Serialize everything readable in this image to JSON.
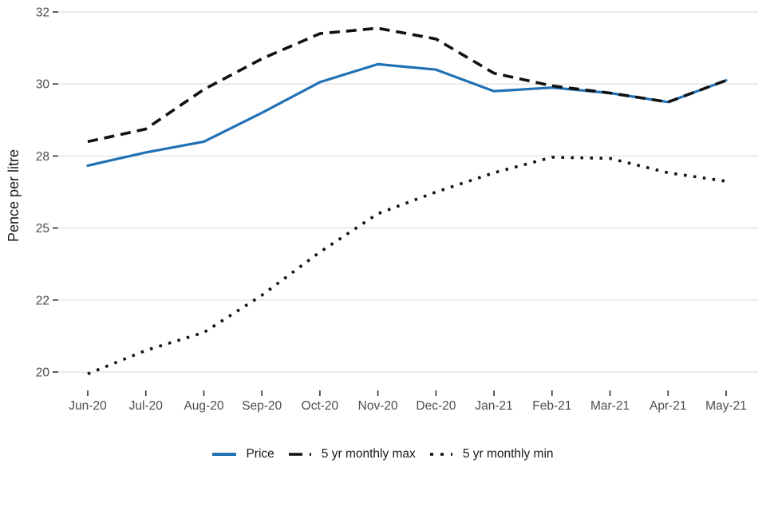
{
  "chart_data": {
    "type": "line",
    "title": "",
    "xlabel": "",
    "ylabel": "Pence per litre",
    "x_categories": [
      "Jun-20",
      "Jul-20",
      "Aug-20",
      "Sep-20",
      "Oct-20",
      "Nov-20",
      "Dec-20",
      "Jan-21",
      "Feb-21",
      "Mar-21",
      "Apr-21",
      "May-21"
    ],
    "y_breaks": [
      20,
      22,
      25,
      28,
      30,
      32
    ],
    "y_tick_labels": [
      "20",
      "22",
      "25",
      "28",
      "30",
      "32"
    ],
    "grid": "horizontal-only",
    "legend_position": "bottom",
    "colors": {
      "price_line": "#2171b5",
      "max_line": "#111111",
      "min_line": "#111111",
      "gridline": "#e6e6e6",
      "tick_mark": "#333333",
      "axis_text": "#4d4d4d",
      "background": "#ffffff"
    },
    "series": [
      {
        "name": "Price",
        "style": "solid",
        "values": [
          27.6,
          28.1,
          28.4,
          29.2,
          30.05,
          30.55,
          30.4,
          29.8,
          29.9,
          29.75,
          29.5,
          30.1
        ]
      },
      {
        "name": "5 yr monthly max",
        "style": "dashed",
        "values": [
          28.4,
          28.75,
          29.85,
          30.7,
          31.4,
          31.55,
          31.25,
          30.3,
          29.95,
          29.75,
          29.5,
          30.1
        ]
      },
      {
        "name": "5 yr monthly min",
        "style": "dotted",
        "values": [
          19.95,
          20.6,
          21.1,
          22.2,
          24.0,
          25.6,
          26.5,
          27.3,
          27.95,
          27.9,
          27.3,
          26.95
        ]
      }
    ]
  }
}
